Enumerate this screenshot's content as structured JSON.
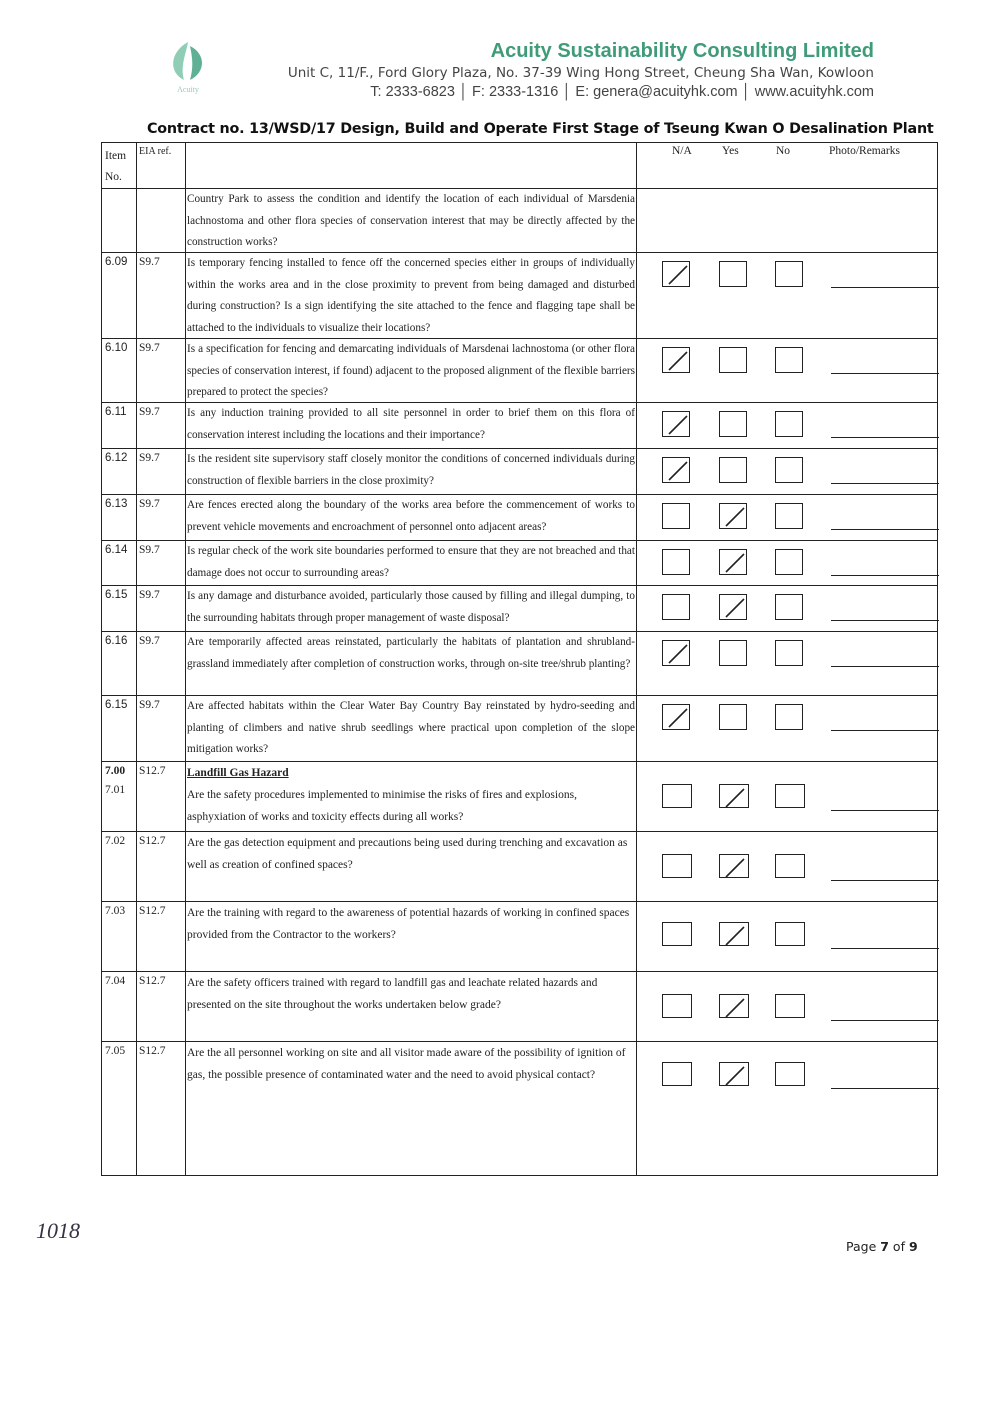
{
  "header": {
    "company": "Acuity Sustainability Consulting Limited",
    "address": "Unit C, 11/F., Ford Glory Plaza, No. 37-39 Wing Hong Street, Cheung Sha Wan, Kowloon",
    "contact": "T: 2333-6823 │ F: 2333-1316 │ E: genera@acuityhk.com │ www.acuityhk.com",
    "logo_text": "Acuity",
    "brand_color": "#3f9b78"
  },
  "contract": "Contract no.  13/WSD/17 Design, Build and Operate First Stage of Tseung Kwan O Desalination Plant",
  "table": {
    "headers": {
      "item": "Item No.",
      "eia": "EIA ref.",
      "na": "N/A",
      "yes": "Yes",
      "no": "No",
      "remarks": "Photo/Remarks"
    },
    "rows": [
      {
        "item": "",
        "eia": "",
        "question": "Country Park to assess the condition and identify the location of each individual of Marsdenia lachnostoma and other flora species of conservation interest that may be directly affected by the construction works?",
        "checked": ""
      },
      {
        "item": "6.09",
        "eia": "S9.7",
        "question": "Is temporary fencing installed to fence off the concerned species either in groups of individually within the works area and in the close proximity to prevent from being damaged and disturbed during construction? Is a sign identifying the site attached to the fence and flagging tape shall be attached to the individuals to visualize their locations?",
        "checked": "na"
      },
      {
        "item": "6.10",
        "eia": "S9.7",
        "question": "Is a specification for fencing and demarcating individuals of Marsdenai lachnostoma (or other flora species of conservation interest, if found) adjacent to the proposed alignment of the flexible barriers prepared to protect the species?",
        "checked": "na"
      },
      {
        "item": "6.11",
        "eia": "S9.7",
        "question": "Is any induction training provided to all site personnel in order to brief them on this flora of conservation interest including the locations and their importance?",
        "checked": "na"
      },
      {
        "item": "6.12",
        "eia": "S9.7",
        "question": "Is the resident site supervisory staff closely monitor the conditions of concerned individuals during construction of flexible barriers in the close proximity?",
        "checked": "na"
      },
      {
        "item": "6.13",
        "eia": "S9.7",
        "question": "Are fences erected along the boundary of the works area before the commencement of works to prevent vehicle movements and encroachment of personnel onto adjacent areas?",
        "checked": "yes"
      },
      {
        "item": "6.14",
        "eia": "S9.7",
        "question": "Is regular check of the work site boundaries performed to ensure that they are not breached and that damage does not occur to surrounding areas?",
        "checked": "yes"
      },
      {
        "item": "6.15",
        "eia": "S9.7",
        "question": "Is any damage and disturbance avoided, particularly those caused by filling and illegal dumping, to the surrounding habitats through proper management of waste disposal?",
        "checked": "yes"
      },
      {
        "item": "6.16",
        "eia": "S9.7",
        "question": "Are temporarily affected areas reinstated, particularly the habitats of plantation and shrubland-grassland immediately after completion of construction works, through on-site tree/shrub planting?",
        "checked": "na"
      },
      {
        "item": "6.15",
        "eia": "S9.7",
        "question": "Are affected habitats within the Clear Water Bay Country Bay reinstated by hydro-seeding and planting of climbers and native shrub seedlings where practical upon completion of the slope mitigation works?",
        "checked": "na"
      },
      {
        "item": "7.00",
        "item2": "7.01",
        "eia": "S12.7",
        "section": "Landfill Gas Hazard",
        "question": "Are the safety procedures implemented to minimise the risks of fires and explosions, asphyxiation of works and toxicity effects during all works?",
        "checked": "yes"
      },
      {
        "item": "7.02",
        "eia": "S12.7",
        "question": "Are the gas detection equipment and precautions being used during trenching and excavation as well as creation of confined spaces?",
        "checked": "yes"
      },
      {
        "item": "7.03",
        "eia": "S12.7",
        "question": "Are the training with regard to the awareness of potential hazards of working in confined spaces provided from the Contractor to the workers?",
        "checked": "yes"
      },
      {
        "item": "7.04",
        "eia": "S12.7",
        "question": "Are the safety officers trained with regard to landfill gas and leachate related hazards and presented on the site throughout the works undertaken below grade?",
        "checked": "yes"
      },
      {
        "item": "7.05",
        "eia": "S12.7",
        "question": "Are the all personnel working on site and all visitor made aware of the possibility of ignition of gas, the possible presence of contaminated water and the need to avoid physical contact?",
        "checked": "yes"
      }
    ]
  },
  "handwritten_number": "1018",
  "footer": {
    "page_prefix": "Page ",
    "page": "7",
    "of": " of ",
    "total": "9"
  }
}
